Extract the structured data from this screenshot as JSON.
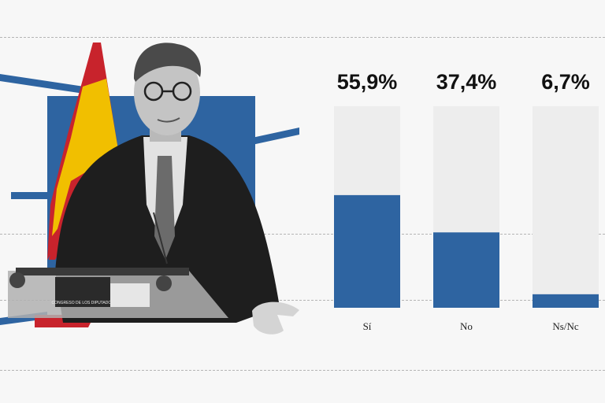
{
  "colors": {
    "bar": "#2e64a1",
    "track": "#ededed",
    "flag_red": "#c8232c",
    "flag_yellow": "#f1bf00"
  },
  "photo": {
    "podium_text": "CONGRESO DE LOS DIPUTADOS"
  },
  "chart_data": {
    "type": "bar",
    "categories": [
      "Sí",
      "No",
      "Ns/Nc"
    ],
    "values": [
      55.9,
      37.4,
      6.7
    ],
    "value_labels": [
      "55,9%",
      "37,4%",
      "6,7%"
    ],
    "ylim": [
      0,
      100
    ],
    "title": "",
    "xlabel": "",
    "ylabel": "",
    "grid": true,
    "legend": "none"
  }
}
